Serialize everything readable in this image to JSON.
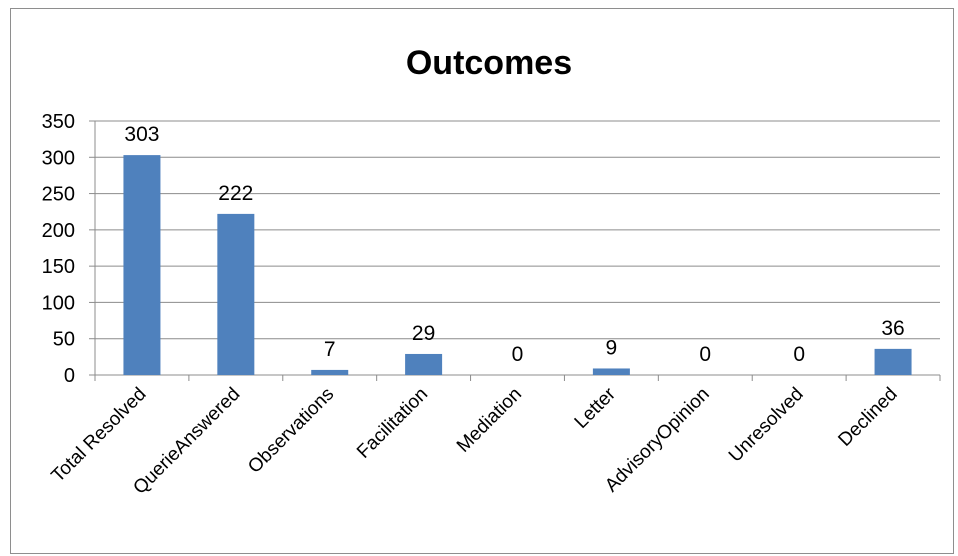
{
  "chart_data": {
    "type": "bar",
    "title": "Outcomes",
    "xlabel": "",
    "ylabel": "",
    "categories": [
      "Total Resolved",
      "QuerieAnswered",
      "Observations",
      "Facilitation",
      "Mediation",
      "Letter",
      "AdvisoryOpinion",
      "Unresolved",
      "Declined"
    ],
    "values": [
      303,
      222,
      7,
      29,
      0,
      9,
      0,
      0,
      36
    ],
    "ylim": [
      0,
      350
    ],
    "yticks": [
      0,
      50,
      100,
      150,
      200,
      250,
      300,
      350
    ],
    "grid": true,
    "legend": "none",
    "data_labels": true,
    "bar_color": "#4f81bd"
  }
}
